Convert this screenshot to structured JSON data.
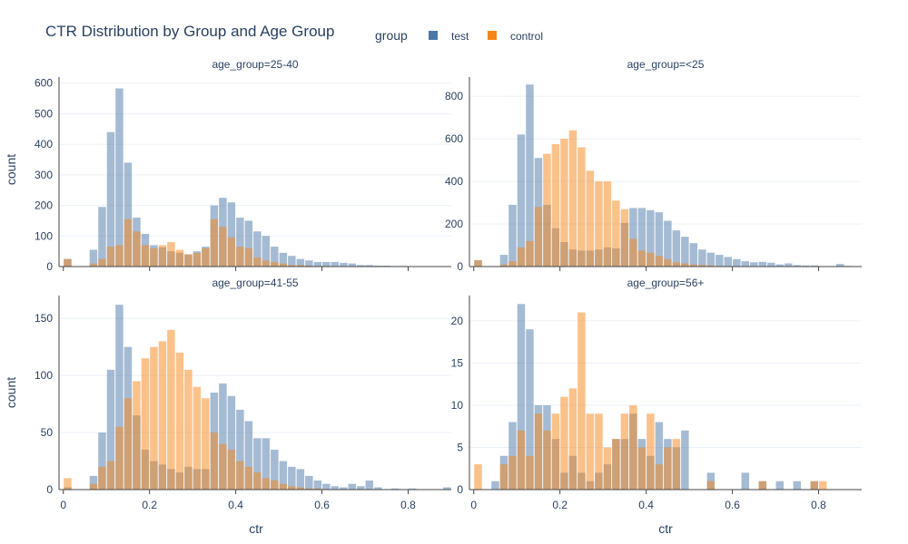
{
  "title": "CTR Distribution by Group and Age Group",
  "legend": {
    "title": "group",
    "placement": "top",
    "items": [
      {
        "name": "test",
        "color": "#4c78a8"
      },
      {
        "name": "control",
        "color": "#f58518"
      }
    ]
  },
  "xlabel": "ctr",
  "ylabel": "count",
  "colors": {
    "test": "#4c78a8",
    "control": "#f58518",
    "grid": "#ebf0f8",
    "text": "#2a3f5f"
  },
  "chart_data": {
    "type": "histogram",
    "layout": "2x2 facet grid",
    "bin_width": 0.02,
    "bin_start": 0.0,
    "overlay": true,
    "grid": true,
    "x_ticks": [
      0,
      0.2,
      0.4,
      0.6,
      0.8
    ],
    "xlim": [
      -0.01,
      0.9
    ],
    "panels": [
      {
        "title": "age_group=25-40",
        "y_ticks": [
          0,
          100,
          200,
          300,
          400,
          500,
          600
        ],
        "ylim": [
          0,
          620
        ],
        "series": [
          {
            "name": "test",
            "values": [
              25,
              0,
              0,
              55,
              195,
              440,
              583,
              340,
              160,
              107,
              70,
              63,
              50,
              45,
              40,
              50,
              65,
              200,
              225,
              210,
              160,
              150,
              115,
              100,
              65,
              45,
              35,
              25,
              20,
              15,
              15,
              15,
              12,
              10,
              5,
              5,
              3,
              3,
              2,
              2,
              1,
              1,
              1,
              0,
              1
            ]
          },
          {
            "name": "control",
            "values": [
              25,
              0,
              0,
              10,
              25,
              65,
              70,
              155,
              115,
              70,
              60,
              70,
              80,
              55,
              40,
              45,
              60,
              155,
              130,
              95,
              65,
              60,
              30,
              20,
              15,
              10,
              5,
              5,
              3,
              2,
              2,
              1,
              1,
              0,
              0,
              0,
              0,
              0,
              0,
              0,
              0,
              0,
              0,
              0,
              0
            ]
          }
        ]
      },
      {
        "title": "age_group=<25",
        "y_ticks": [
          0,
          200,
          400,
          600,
          800
        ],
        "ylim": [
          0,
          890
        ],
        "series": [
          {
            "name": "test",
            "values": [
              30,
              0,
              0,
              55,
              290,
              620,
              855,
              510,
              290,
              180,
              115,
              80,
              75,
              75,
              80,
              90,
              85,
              205,
              275,
              275,
              265,
              255,
              215,
              170,
              140,
              110,
              80,
              65,
              55,
              45,
              35,
              25,
              20,
              22,
              18,
              10,
              15,
              7,
              5,
              5,
              2,
              1,
              12,
              3,
              2
            ]
          },
          {
            "name": "control",
            "values": [
              30,
              0,
              0,
              10,
              25,
              90,
              120,
              280,
              530,
              575,
              600,
              640,
              560,
              450,
              400,
              400,
              310,
              270,
              130,
              75,
              65,
              50,
              35,
              20,
              15,
              10,
              8,
              5,
              3,
              2,
              1,
              1,
              0,
              0,
              0,
              0,
              0,
              0,
              0,
              0,
              0,
              0,
              0,
              0,
              0
            ]
          }
        ]
      },
      {
        "title": "age_group=41-55",
        "y_ticks": [
          0,
          50,
          100,
          150
        ],
        "ylim": [
          0,
          170
        ],
        "series": [
          {
            "name": "test",
            "values": [
              2,
              0,
              0,
              12,
              50,
              105,
              162,
              125,
              65,
              35,
              25,
              22,
              18,
              15,
              20,
              18,
              18,
              85,
              93,
              82,
              70,
              60,
              45,
              45,
              35,
              25,
              20,
              18,
              12,
              8,
              5,
              3,
              2,
              5,
              3,
              8,
              2,
              0,
              1,
              0,
              1,
              0,
              0,
              0,
              2
            ]
          },
          {
            "name": "control",
            "values": [
              10,
              0,
              0,
              5,
              20,
              25,
              55,
              80,
              95,
              115,
              125,
              130,
              140,
              120,
              105,
              90,
              80,
              50,
              40,
              35,
              25,
              20,
              15,
              10,
              8,
              5,
              3,
              2,
              1,
              1,
              0,
              0,
              0,
              0,
              0,
              0,
              0,
              0,
              0,
              0,
              0,
              0,
              0,
              0,
              0
            ]
          }
        ]
      },
      {
        "title": "age_group=56+",
        "y_ticks": [
          0,
          5,
          10,
          15,
          20
        ],
        "ylim": [
          0,
          23
        ],
        "series": [
          {
            "name": "test",
            "values": [
              0,
              0,
              1,
              4,
              8,
              22,
              19,
              10,
              10,
              6,
              2,
              4,
              2,
              1,
              2,
              3,
              6,
              6,
              9,
              6,
              4,
              8,
              6,
              5,
              7,
              0,
              0,
              2,
              0,
              0,
              0,
              2,
              0,
              1,
              0,
              1,
              0,
              1,
              0,
              1,
              0,
              0,
              0,
              0,
              0
            ]
          },
          {
            "name": "control",
            "values": [
              3,
              0,
              0,
              3,
              4,
              7,
              4,
              9,
              7,
              9,
              11,
              12,
              21,
              9,
              9,
              5,
              6,
              9,
              10,
              5,
              9,
              3,
              5,
              6,
              0,
              0,
              0,
              1,
              0,
              0,
              0,
              0,
              0,
              1,
              0,
              0,
              0,
              0,
              0,
              1,
              1,
              0,
              0,
              0,
              0
            ]
          }
        ]
      }
    ]
  }
}
